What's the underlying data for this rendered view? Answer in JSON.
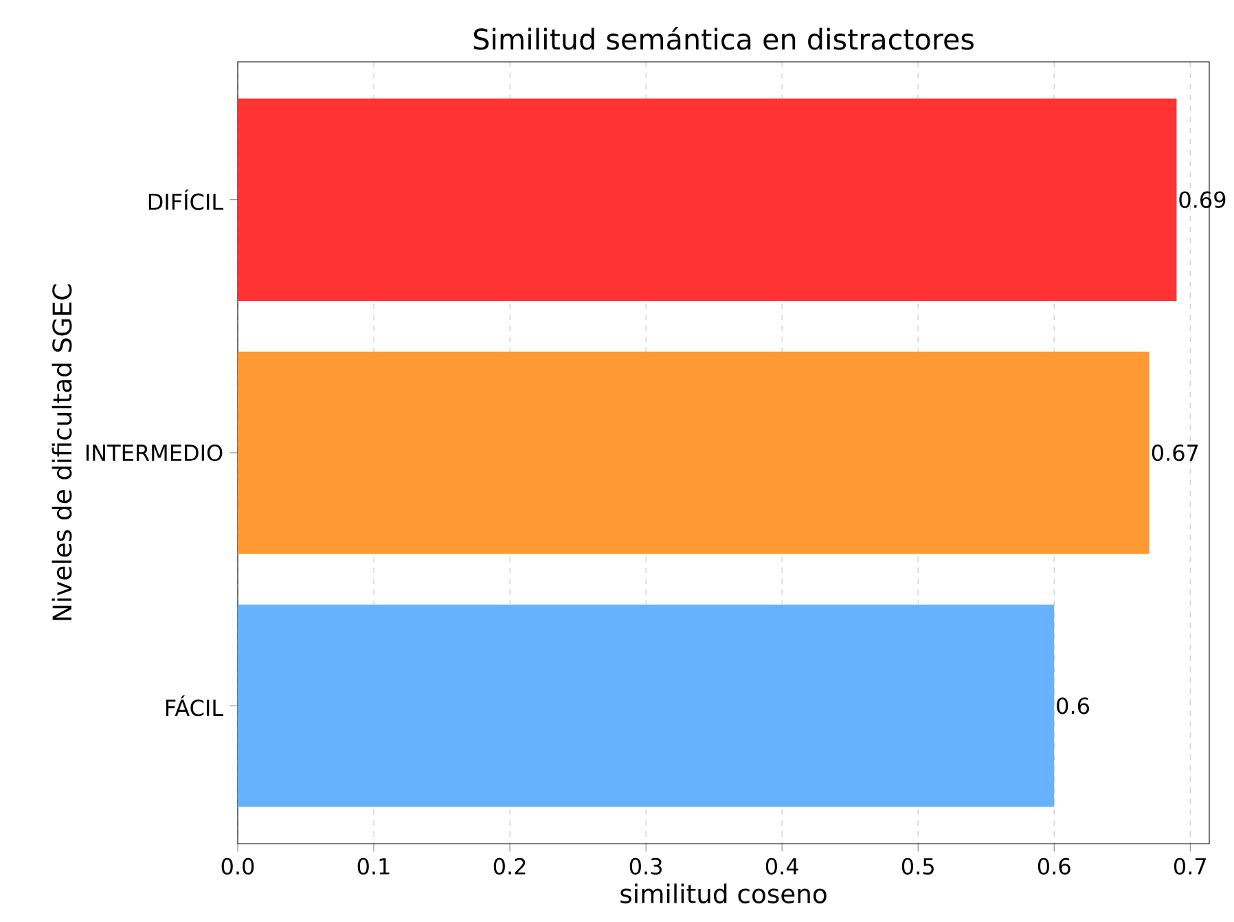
{
  "chart_data": {
    "type": "bar",
    "orientation": "horizontal",
    "title": "Similitud semántica en distractores",
    "xlabel": "similitud coseno",
    "ylabel": "Niveles de dificultad SGEC",
    "categories": [
      "DIFÍCIL",
      "INTERMEDIO",
      "FÁCIL"
    ],
    "values": [
      0.69,
      0.67,
      0.6
    ],
    "colors": [
      "#ff3333",
      "#ff9933",
      "#66b2ff"
    ],
    "xlim": [
      0,
      0.714
    ],
    "xticks": [
      {
        "value": 0,
        "label": "0.0"
      },
      0.1,
      0.2,
      0.3,
      0.4,
      0.5,
      0.6,
      0.7
    ],
    "grid": "x",
    "data_labels": true
  }
}
